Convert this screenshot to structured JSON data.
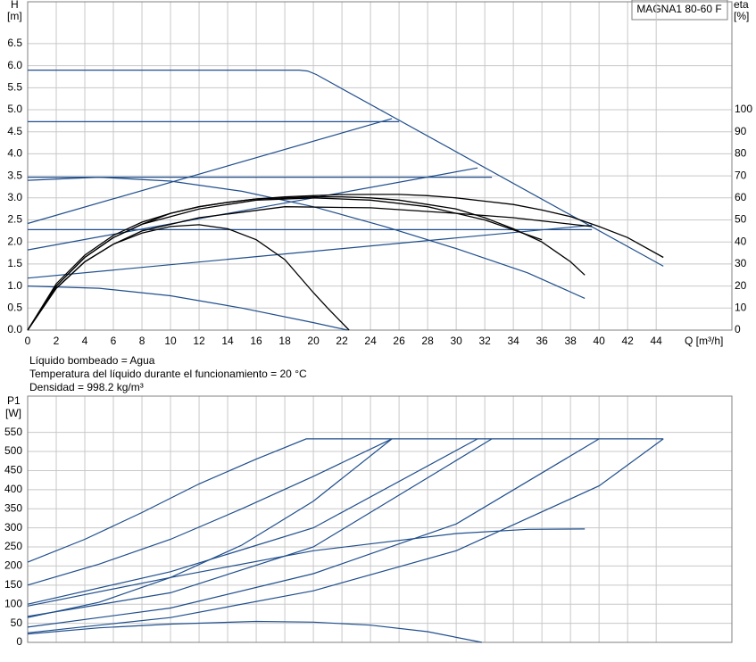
{
  "chart_data": [
    {
      "type": "line",
      "title": "MAGNA1 80-60 F",
      "y_label": "H",
      "y_unit": "[m]",
      "y2_label": "eta",
      "y2_unit": "[%]",
      "x_label": "Q [m³/h]",
      "xlim": [
        0,
        49.3
      ],
      "xticks": [
        0,
        2,
        4,
        6,
        8,
        10,
        12,
        14,
        16,
        18,
        20,
        22,
        24,
        26,
        28,
        30,
        32,
        34,
        36,
        38,
        40,
        42,
        44
      ],
      "ylim": [
        0,
        7.45
      ],
      "yticks": [
        {
          "value": 0,
          "label": "0.0"
        },
        0.5,
        {
          "value": 1,
          "label": "1.0"
        },
        1.5,
        {
          "value": 2,
          "label": "2.0"
        },
        2.5,
        {
          "value": 3,
          "label": "3.0"
        },
        3.5,
        {
          "value": 4,
          "label": "4.0"
        },
        4.5,
        {
          "value": 5,
          "label": "5.0"
        },
        5.5,
        {
          "value": 6,
          "label": "6.0"
        },
        6.5
      ],
      "y2lim": [
        0,
        149
      ],
      "y2ticks": [
        0,
        10,
        20,
        30,
        40,
        50,
        60,
        70,
        80,
        90,
        100
      ],
      "grid": true,
      "annotations": [
        "Líquido bombeado = Agua",
        "Temperatura del líquido durante el funcionamiento = 20 °C",
        "Densidad = 998.2 kg/m³"
      ],
      "series": [
        {
          "color": "#1f4e8c",
          "x": [
            0,
            19,
            19.6,
            20.2,
            44.5
          ],
          "values": [
            5.9,
            5.9,
            5.88,
            5.8,
            1.45
          ]
        },
        {
          "color": "#1f4e8c",
          "x": [
            0,
            26
          ],
          "values": [
            4.73,
            4.73
          ]
        },
        {
          "color": "#1f4e8c",
          "x": [
            0,
            32.5
          ],
          "values": [
            3.47,
            3.47
          ]
        },
        {
          "color": "#1f4e8c",
          "x": [
            0,
            39.5
          ],
          "values": [
            2.28,
            2.28
          ]
        },
        {
          "color": "#1f4e8c",
          "x": [
            0,
            25.5
          ],
          "values": [
            2.42,
            4.8
          ]
        },
        {
          "color": "#1f4e8c",
          "x": [
            0,
            31.5
          ],
          "values": [
            1.82,
            3.68
          ]
        },
        {
          "color": "#1f4e8c",
          "x": [
            0,
            39.5
          ],
          "values": [
            1.18,
            2.38
          ]
        },
        {
          "color": "#1f4e8c",
          "x": [
            0,
            5,
            10,
            15,
            20,
            25,
            30,
            35,
            39
          ],
          "values": [
            3.4,
            3.47,
            3.38,
            3.15,
            2.8,
            2.35,
            1.85,
            1.3,
            0.72
          ]
        },
        {
          "color": "#1f4e8c",
          "x": [
            0,
            5,
            10,
            15,
            20,
            22.4
          ],
          "values": [
            1.0,
            0.95,
            0.78,
            0.5,
            0.17,
            0
          ]
        },
        {
          "color": "#000000",
          "axis": "y2",
          "x": [
            0,
            2,
            4,
            6,
            8,
            10,
            12,
            14,
            16,
            18,
            20,
            21,
            22.5
          ],
          "values": [
            0,
            19,
            31,
            39,
            44,
            47,
            47.8,
            46,
            41,
            32,
            17,
            10,
            0
          ]
        },
        {
          "color": "#000000",
          "axis": "y2",
          "x": [
            0,
            2,
            4,
            6,
            8,
            10,
            12,
            14,
            16,
            18,
            20,
            22,
            24,
            26,
            28,
            30,
            32,
            34,
            36,
            38,
            39
          ],
          "values": [
            0,
            20,
            33,
            42,
            48,
            53,
            56,
            58,
            59.5,
            60,
            60.5,
            60.5,
            60,
            59,
            57,
            55,
            51,
            46,
            40,
            31,
            25
          ]
        },
        {
          "color": "#000000",
          "axis": "y2",
          "x": [
            0,
            2,
            4,
            6,
            8,
            10,
            12,
            14,
            16,
            18,
            20,
            22,
            24,
            26,
            28,
            30,
            32,
            34,
            36,
            38,
            40,
            42,
            44.5
          ],
          "values": [
            0,
            21,
            34,
            43,
            49,
            53,
            56,
            58,
            59.5,
            60.5,
            61,
            61.5,
            61.6,
            61.6,
            61,
            60,
            58.5,
            57,
            54.5,
            51.5,
            47,
            42,
            33
          ]
        },
        {
          "color": "#000000",
          "axis": "y2",
          "x": [
            0,
            2,
            4,
            6,
            8,
            12,
            16,
            20,
            24,
            28,
            32,
            36
          ],
          "values": [
            0,
            20,
            33,
            42,
            48,
            55,
            59,
            60,
            59,
            56,
            50,
            41
          ]
        },
        {
          "color": "#000000",
          "axis": "y2",
          "x": [
            0,
            2,
            4,
            6,
            8,
            12,
            18,
            24,
            30,
            34,
            39.5
          ],
          "values": [
            0,
            19,
            31,
            39,
            45,
            51,
            56,
            55.5,
            53,
            51,
            47
          ]
        }
      ]
    },
    {
      "type": "line",
      "y_label": "P1",
      "y_unit": "[W]",
      "xlim": [
        0,
        49.3
      ],
      "xticks": [
        0,
        2,
        4,
        6,
        8,
        10,
        12,
        14,
        16,
        18,
        20,
        22,
        24,
        26,
        28,
        30,
        32,
        34,
        36,
        38,
        40,
        42,
        44
      ],
      "ylim": [
        0,
        645
      ],
      "yticks": [
        0,
        50,
        100,
        150,
        200,
        250,
        300,
        350,
        400,
        450,
        500,
        550
      ],
      "grid": true,
      "series": [
        {
          "color": "#1f4e8c",
          "x": [
            0,
            4,
            8,
            12,
            16,
            19.5,
            44.5
          ],
          "values": [
            210,
            270,
            340,
            415,
            480,
            533,
            533
          ]
        },
        {
          "color": "#1f4e8c",
          "x": [
            0,
            5,
            10,
            15,
            20,
            25.5
          ],
          "values": [
            150,
            205,
            270,
            350,
            435,
            533
          ]
        },
        {
          "color": "#1f4e8c",
          "x": [
            0,
            5,
            10,
            15,
            20,
            25.5
          ],
          "values": [
            65,
            105,
            170,
            255,
            370,
            533
          ]
        },
        {
          "color": "#1f4e8c",
          "x": [
            0,
            10,
            20,
            31.5
          ],
          "values": [
            100,
            185,
            300,
            533
          ]
        },
        {
          "color": "#1f4e8c",
          "x": [
            0,
            10,
            20,
            32.5
          ],
          "values": [
            68,
            130,
            250,
            533
          ]
        },
        {
          "color": "#1f4e8c",
          "x": [
            0,
            10,
            20,
            30,
            40
          ],
          "values": [
            40,
            90,
            180,
            310,
            533
          ]
        },
        {
          "color": "#1f4e8c",
          "x": [
            0,
            10,
            20,
            30,
            40,
            44.5
          ],
          "values": [
            25,
            65,
            135,
            240,
            410,
            533
          ]
        },
        {
          "color": "#1f4e8c",
          "x": [
            0,
            10,
            20,
            30,
            35,
            39
          ],
          "values": [
            95,
            170,
            240,
            285,
            296,
            297
          ]
        },
        {
          "color": "#1f4e8c",
          "x": [
            0,
            5,
            10,
            16,
            20,
            24,
            28,
            31.8
          ],
          "values": [
            22,
            38,
            48,
            55,
            53,
            45,
            28,
            0
          ]
        }
      ]
    }
  ]
}
